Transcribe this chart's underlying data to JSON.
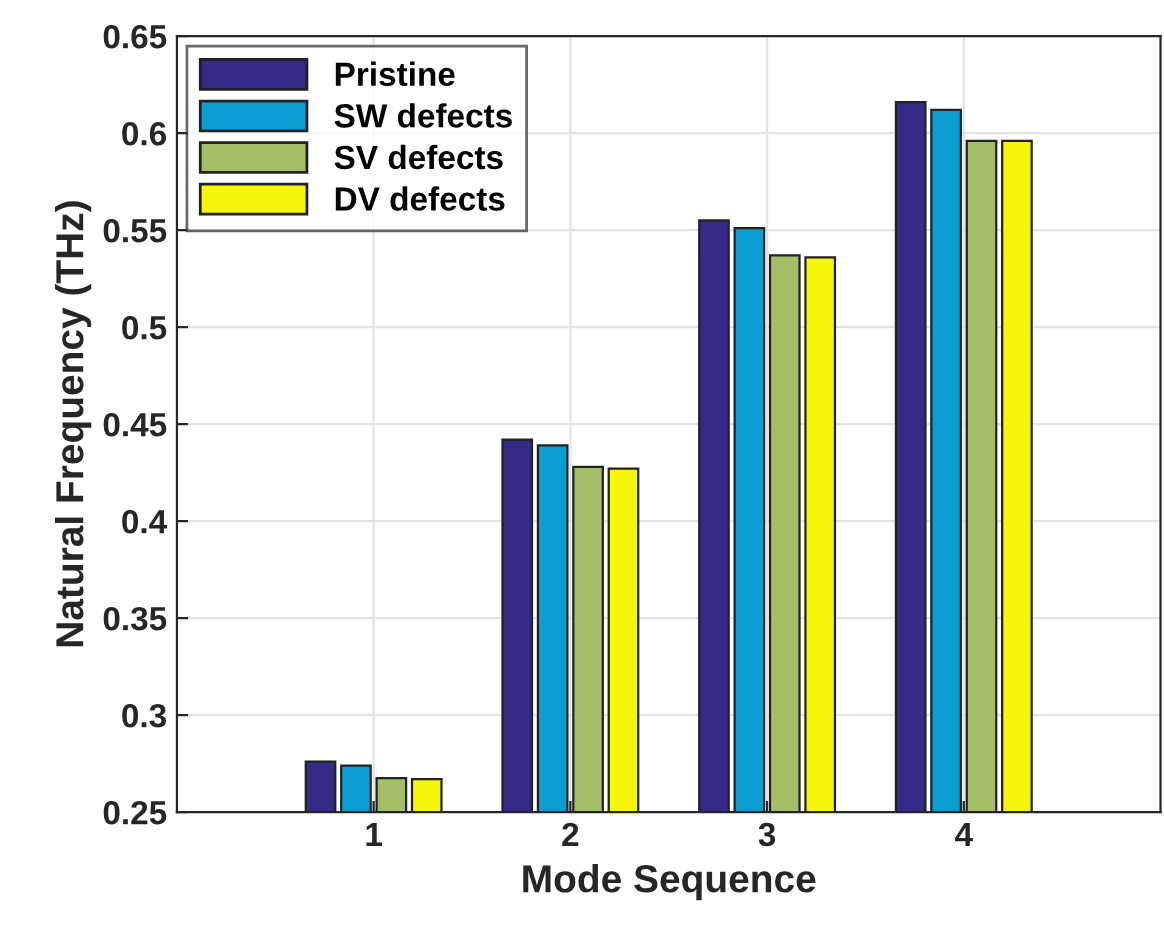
{
  "chart_data": {
    "type": "bar",
    "xlabel": "Mode Sequence",
    "ylabel": "Natural Frequency (THz)",
    "x": [
      1,
      2,
      3,
      4
    ],
    "series": [
      {
        "name": "Pristine",
        "color": "#352a87",
        "values": [
          0.276,
          0.442,
          0.555,
          0.616
        ]
      },
      {
        "name": "SW defects",
        "color": "#0a9ed2",
        "values": [
          0.274,
          0.439,
          0.551,
          0.612
        ]
      },
      {
        "name": "SV defects",
        "color": "#a5bf68",
        "values": [
          0.2675,
          0.428,
          0.537,
          0.596
        ]
      },
      {
        "name": "DV defects",
        "color": "#f5f50a",
        "values": [
          0.267,
          0.427,
          0.536,
          0.596
        ]
      }
    ],
    "xlim": [
      0,
      5
    ],
    "xticks": [
      1,
      2,
      3,
      4
    ],
    "ylim": [
      0.25,
      0.65
    ],
    "yticks": [
      0.25,
      0.3,
      0.35,
      0.4,
      0.45,
      0.5,
      0.55,
      0.6,
      0.65
    ],
    "grid": true,
    "legend": "top left"
  }
}
